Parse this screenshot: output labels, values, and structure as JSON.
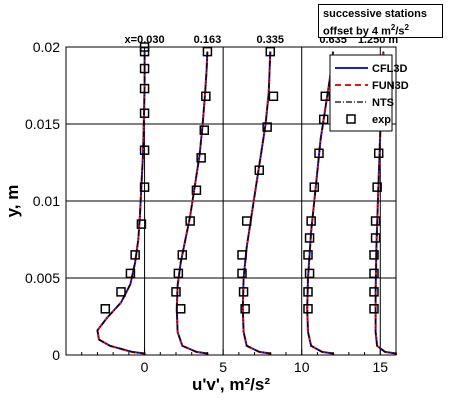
{
  "annotation": {
    "line1": "successive stations",
    "line2_text": "offset by 4 m",
    "line2_sup1": "2",
    "line2_mid": "/s",
    "line2_sup2": "2"
  },
  "colors": {
    "CFL3D": "#1f1fcc",
    "FUN3D": "#e01a1a",
    "NTS": "#000000"
  },
  "chart_data": {
    "type": "line",
    "xlabel": "u'v', m²/s²",
    "ylabel": "y, m",
    "xlim": [
      -5,
      16
    ],
    "ylim": [
      0,
      0.02
    ],
    "xticks": [
      0,
      5,
      10,
      15
    ],
    "yticks": [
      0,
      0.005,
      0.01,
      0.015,
      0.02
    ],
    "ytick_labels": [
      "0",
      "0.005",
      "0.01",
      "0.015",
      "0.02"
    ],
    "grid": true,
    "legend_position": "top-right",
    "station_offsets": [
      0,
      4,
      8,
      12,
      16
    ],
    "station_labels": [
      "x=0.030",
      "0.163",
      "0.335",
      "0.635",
      "1.250 m"
    ],
    "station_label_x": [
      0,
      4,
      8,
      12,
      16
    ],
    "series": [
      {
        "name": "CFL3D",
        "style": "solid"
      },
      {
        "name": "FUN3D",
        "style": "dashed"
      },
      {
        "name": "NTS",
        "style": "dashdot"
      },
      {
        "name": "exp",
        "style": "square-marker"
      }
    ],
    "profiles": [
      {
        "station": "x=0.030",
        "x": [
          0,
          0,
          -0.8,
          -2.2,
          -2.9,
          -3.0,
          -2.4,
          -1.5,
          -0.9,
          -0.6,
          -0.4,
          -0.3,
          -0.2,
          -0.1,
          -0.05,
          0,
          0
        ],
        "y": [
          0,
          0.0001,
          0.0002,
          0.0006,
          0.001,
          0.0016,
          0.0024,
          0.0034,
          0.0046,
          0.006,
          0.0075,
          0.009,
          0.011,
          0.013,
          0.015,
          0.0175,
          0.0197
        ]
      },
      {
        "station": "0.163",
        "x": [
          4,
          4,
          3.3,
          2.4,
          2.1,
          2.05,
          2.1,
          2.3,
          2.6,
          2.9,
          3.2,
          3.5,
          3.7,
          3.85,
          3.95,
          4
        ],
        "y": [
          0,
          0.0001,
          0.0002,
          0.0006,
          0.0015,
          0.003,
          0.0045,
          0.006,
          0.0075,
          0.009,
          0.011,
          0.013,
          0.015,
          0.017,
          0.0185,
          0.0197
        ]
      },
      {
        "station": "0.335",
        "x": [
          8,
          8,
          7.3,
          6.5,
          6.3,
          6.25,
          6.3,
          6.5,
          6.8,
          7.1,
          7.4,
          7.7,
          7.9,
          8
        ],
        "y": [
          0,
          0.0001,
          0.0002,
          0.0006,
          0.0015,
          0.003,
          0.005,
          0.007,
          0.009,
          0.011,
          0.013,
          0.015,
          0.017,
          0.0197
        ]
      },
      {
        "station": "0.635",
        "x": [
          12,
          12,
          11.3,
          10.6,
          10.4,
          10.35,
          10.4,
          10.6,
          10.9,
          11.2,
          11.5,
          11.8,
          12
        ],
        "y": [
          0,
          0.0001,
          0.0002,
          0.0006,
          0.0015,
          0.003,
          0.005,
          0.008,
          0.011,
          0.014,
          0.016,
          0.018,
          0.0197
        ]
      },
      {
        "station": "1.250 m",
        "x": [
          16,
          16,
          15.3,
          14.8,
          14.7,
          14.7,
          14.75,
          14.85,
          14.95,
          15.05,
          15.2
        ],
        "y": [
          0,
          0.0001,
          0.0002,
          0.0006,
          0.0015,
          0.004,
          0.007,
          0.01,
          0.013,
          0.016,
          0.0197
        ]
      }
    ],
    "exp": [
      {
        "station": "x=0.030",
        "x": [
          -2.5,
          -1.5,
          -0.9,
          -0.6,
          -0.2,
          0,
          0,
          0,
          0,
          0,
          0,
          0
        ],
        "y": [
          0.003,
          0.0041,
          0.0053,
          0.0065,
          0.0085,
          0.0109,
          0.0133,
          0.0157,
          0.0173,
          0.0186,
          0.0197,
          0.02
        ]
      },
      {
        "station": "0.163",
        "x": [
          2.3,
          2.0,
          2.15,
          2.4,
          2.9,
          3.3,
          3.6,
          3.8,
          3.9,
          4.0
        ],
        "y": [
          0.003,
          0.0041,
          0.0053,
          0.0065,
          0.0087,
          0.0107,
          0.0128,
          0.0146,
          0.0168,
          0.0197
        ]
      },
      {
        "station": "0.335",
        "x": [
          6.4,
          6.3,
          6.2,
          6.2,
          6.5,
          7.3,
          7.8,
          8.2,
          8.0
        ],
        "y": [
          0.003,
          0.0041,
          0.0053,
          0.0065,
          0.0087,
          0.012,
          0.0148,
          0.0168,
          0.0197
        ]
      },
      {
        "station": "0.635",
        "x": [
          10.4,
          10.4,
          10.5,
          10.4,
          10.5,
          10.6,
          10.8,
          11.1,
          11.4,
          11.5
        ],
        "y": [
          0.003,
          0.0041,
          0.0053,
          0.0065,
          0.0076,
          0.0087,
          0.0109,
          0.0131,
          0.0153,
          0.0168
        ]
      },
      {
        "station": "1.250 m",
        "x": [
          14.6,
          14.6,
          14.6,
          14.6,
          14.7,
          14.7,
          14.8,
          14.9,
          14.9
        ],
        "y": [
          0.003,
          0.0041,
          0.0053,
          0.0065,
          0.0076,
          0.0087,
          0.0109,
          0.0131,
          0.0153
        ]
      }
    ]
  }
}
